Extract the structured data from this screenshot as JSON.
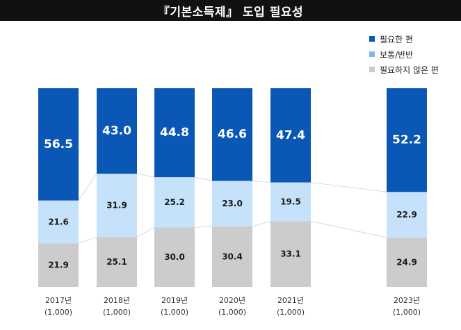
{
  "header": {
    "title": "『기본소득제』 도입 필요성"
  },
  "colors": {
    "title_bg": "#111111",
    "needed": "#0a57b5",
    "neutral": "#c6e2fb",
    "neutral_swatch": "#7db9ef",
    "not_needed": "#cccccc",
    "connector": "#d8d8d8"
  },
  "chart_data": {
    "type": "bar",
    "stacked": true,
    "normalized": true,
    "title": "『기본소득제』 도입 필요성",
    "categories": [
      "2017년",
      "2018년",
      "2019년",
      "2020년",
      "2021년",
      "2023년"
    ],
    "sample_sizes": [
      "(1,000)",
      "(1,000)",
      "(1,000)",
      "(1,000)",
      "(1,000)",
      "(1,000)"
    ],
    "series": [
      {
        "name": "필요하지 않은 편",
        "values": [
          21.9,
          25.1,
          30.0,
          30.4,
          33.1,
          24.9
        ]
      },
      {
        "name": "보통/반반",
        "values": [
          21.6,
          31.9,
          25.2,
          23.0,
          19.5,
          22.9
        ]
      },
      {
        "name": "필요한 편",
        "values": [
          56.5,
          43.0,
          44.8,
          46.6,
          47.4,
          52.2
        ]
      }
    ],
    "legend": [
      "필요한 편",
      "보통/반반",
      "필요하지 않은 편"
    ],
    "legend_position": "top-right",
    "ylim": [
      0,
      100
    ],
    "xlabel": "",
    "ylabel": ""
  }
}
